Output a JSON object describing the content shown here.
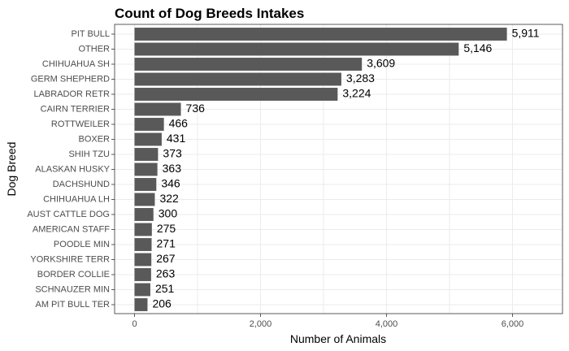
{
  "chart_data": {
    "type": "bar",
    "orientation": "horizontal",
    "title": "Count of Dog Breeds Intakes",
    "xlabel": "Number of Animals",
    "ylabel": "Dog Breed",
    "xlim": [
      0,
      6800
    ],
    "x_ticks": [
      0,
      2000,
      4000,
      6000
    ],
    "x_tick_labels": [
      "0",
      "2,000",
      "4,000",
      "6,000"
    ],
    "grid": true,
    "bar_color": "#595959",
    "categories": [
      "PIT BULL",
      "OTHER",
      "CHIHUAHUA SH",
      "GERM SHEPHERD",
      "LABRADOR RETR",
      "CAIRN TERRIER",
      "ROTTWEILER",
      "BOXER",
      "SHIH TZU",
      "ALASKAN HUSKY",
      "DACHSHUND",
      "CHIHUAHUA LH",
      "AUST CATTLE DOG",
      "AMERICAN STAFF",
      "POODLE MIN",
      "YORKSHIRE TERR",
      "BORDER COLLIE",
      "SCHNAUZER MIN",
      "AM PIT BULL TER"
    ],
    "values": [
      5911,
      5146,
      3609,
      3283,
      3224,
      736,
      466,
      431,
      373,
      363,
      346,
      322,
      300,
      275,
      271,
      267,
      263,
      251,
      206
    ],
    "value_labels": [
      "5,911",
      "5,146",
      "3,609",
      "3,283",
      "3,224",
      "736",
      "466",
      "431",
      "373",
      "363",
      "346",
      "322",
      "300",
      "275",
      "271",
      "267",
      "263",
      "251",
      "206"
    ]
  }
}
